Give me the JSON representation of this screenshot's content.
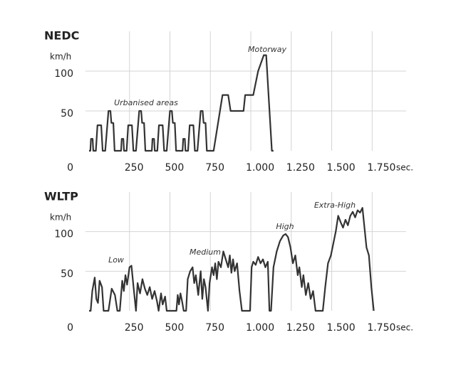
{
  "chart_data": [
    {
      "type": "line",
      "title": "NEDC",
      "y_label": "km/h",
      "x_label": "sec.",
      "annotations": [
        "Urbanised areas",
        "Motorway"
      ],
      "x": [
        0,
        8,
        12,
        22,
        26,
        42,
        52,
        75,
        84,
        100,
        120,
        132,
        138,
        150,
        158,
        190,
        198,
        202,
        212,
        216,
        232,
        242,
        265,
        274,
        290,
        310,
        322,
        328,
        340,
        348,
        380,
        388,
        392,
        402,
        406,
        422,
        432,
        455,
        464,
        480,
        500,
        512,
        518,
        530,
        538,
        570,
        578,
        582,
        592,
        596,
        612,
        622,
        645,
        654,
        670,
        690,
        702,
        708,
        720,
        728,
        770,
        825,
        860,
        875,
        955,
        965,
        1015,
        1045,
        1080,
        1095,
        1130,
        1140
      ],
      "values": [
        0,
        0,
        15,
        15,
        0,
        0,
        32,
        32,
        0,
        0,
        50,
        50,
        35,
        35,
        0,
        0,
        0,
        15,
        15,
        0,
        0,
        32,
        32,
        0,
        0,
        50,
        50,
        35,
        35,
        0,
        0,
        0,
        15,
        15,
        0,
        0,
        32,
        32,
        0,
        0,
        50,
        50,
        35,
        35,
        0,
        0,
        0,
        15,
        15,
        0,
        0,
        32,
        32,
        0,
        0,
        50,
        50,
        35,
        35,
        0,
        0,
        70,
        70,
        50,
        50,
        70,
        70,
        100,
        120,
        120,
        0,
        0
      ],
      "color": "#333333",
      "xlim": [
        0,
        1960
      ],
      "ylim": [
        0,
        150
      ],
      "xticks": [
        0,
        250,
        500,
        750,
        {
          "value": 1000,
          "label": "1.000"
        },
        {
          "value": 1250,
          "label": "1.250"
        },
        {
          "value": 1500,
          "label": "1.500"
        },
        {
          "value": 1750,
          "label": "1.750"
        }
      ],
      "yticks": [
        50,
        100
      ],
      "grid": true
    },
    {
      "type": "line",
      "title": "WLTP",
      "y_label": "km/h",
      "x_label": "sec.",
      "annotations": [
        "Low",
        "Medium",
        "High",
        "Extra-High"
      ],
      "x": [
        0,
        10,
        20,
        35,
        45,
        55,
        65,
        80,
        90,
        120,
        140,
        160,
        175,
        190,
        205,
        215,
        225,
        235,
        250,
        262,
        275,
        290,
        300,
        315,
        330,
        345,
        360,
        375,
        390,
        405,
        420,
        430,
        445,
        455,
        470,
        480,
        540,
        548,
        556,
        565,
        575,
        585,
        600,
        610,
        625,
        640,
        650,
        660,
        675,
        690,
        700,
        710,
        720,
        735,
        745,
        760,
        770,
        780,
        790,
        800,
        815,
        830,
        845,
        860,
        870,
        880,
        890,
        900,
        915,
        930,
        945,
        995,
        1005,
        1015,
        1030,
        1045,
        1060,
        1075,
        1090,
        1105,
        1115,
        1125,
        1140,
        1160,
        1180,
        1200,
        1215,
        1230,
        1245,
        1260,
        1275,
        1290,
        1300,
        1315,
        1325,
        1340,
        1355,
        1370,
        1385,
        1400,
        1445,
        1460,
        1477,
        1495,
        1510,
        1525,
        1540,
        1555,
        1570,
        1585,
        1600,
        1615,
        1630,
        1645,
        1660,
        1675,
        1690,
        1700,
        1715,
        1730,
        1745,
        1760
      ],
      "values": [
        0,
        0,
        25,
        42,
        15,
        10,
        38,
        30,
        0,
        0,
        28,
        20,
        0,
        0,
        38,
        25,
        45,
        33,
        55,
        57,
        30,
        0,
        35,
        22,
        40,
        28,
        20,
        30,
        15,
        25,
        12,
        0,
        22,
        8,
        18,
        0,
        0,
        20,
        8,
        22,
        12,
        0,
        0,
        40,
        50,
        55,
        35,
        45,
        20,
        50,
        15,
        40,
        30,
        0,
        35,
        55,
        45,
        60,
        40,
        62,
        55,
        75,
        65,
        55,
        70,
        48,
        65,
        50,
        60,
        25,
        0,
        0,
        55,
        62,
        58,
        68,
        60,
        65,
        55,
        62,
        0,
        0,
        55,
        75,
        88,
        95,
        97,
        93,
        80,
        60,
        70,
        45,
        55,
        30,
        45,
        20,
        35,
        15,
        25,
        0,
        0,
        30,
        60,
        70,
        85,
        100,
        120,
        112,
        105,
        115,
        108,
        120,
        125,
        118,
        127,
        124,
        130,
        110,
        80,
        70,
        30,
        0
      ],
      "color": "#333333",
      "xlim": [
        0,
        1960
      ],
      "ylim": [
        0,
        150
      ],
      "xticks": [
        0,
        250,
        500,
        750,
        {
          "value": 1000,
          "label": "1.000"
        },
        {
          "value": 1250,
          "label": "1.250"
        },
        {
          "value": 1500,
          "label": "1.500"
        },
        {
          "value": 1750,
          "label": "1.750"
        }
      ],
      "yticks": [
        50,
        100
      ],
      "grid": true
    }
  ]
}
